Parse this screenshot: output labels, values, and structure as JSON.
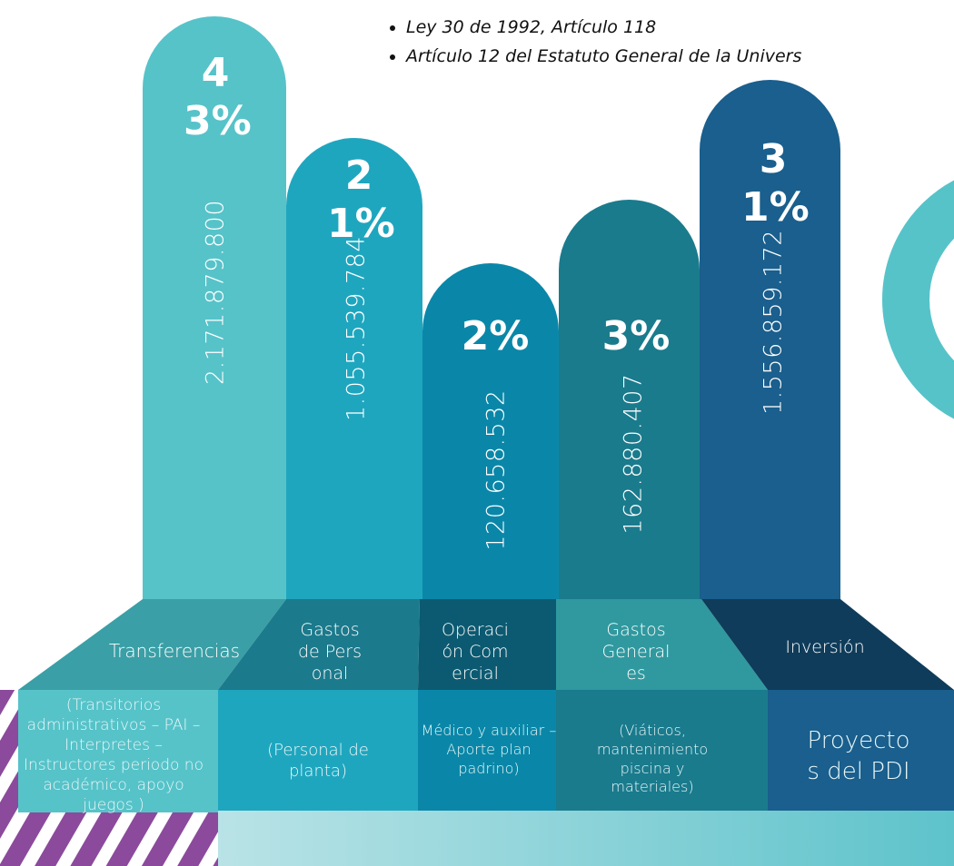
{
  "bullets": [
    "Ley 30 de 1992, Artículo 118",
    "Artículo 12 del Estatuto General de la Univers"
  ],
  "columns": [
    {
      "percent": "43%",
      "amount": "2.171.879.800",
      "title": "Transferencias",
      "description": "(Transitorios administrativos – PAI – Interpretes – Instructores periodo no académico, apoyo juegos )"
    },
    {
      "percent": "21%",
      "amount": "1.055.539.784",
      "title": "Gastos de Personal",
      "description": "(Personal de planta)"
    },
    {
      "percent": "2%",
      "amount": "120.658.532",
      "title": "Operación Comercial",
      "description": "Médico y auxiliar – Aporte plan padrino)"
    },
    {
      "percent": "3%",
      "amount": "162.880.407",
      "title": "Gastos Generales",
      "description": "(Viáticos, mantenimiento piscina y materiales)"
    },
    {
      "percent": "31%",
      "amount": "1.556.859.172",
      "title": "Inversión",
      "description": "Proyectos del PDI"
    }
  ]
}
